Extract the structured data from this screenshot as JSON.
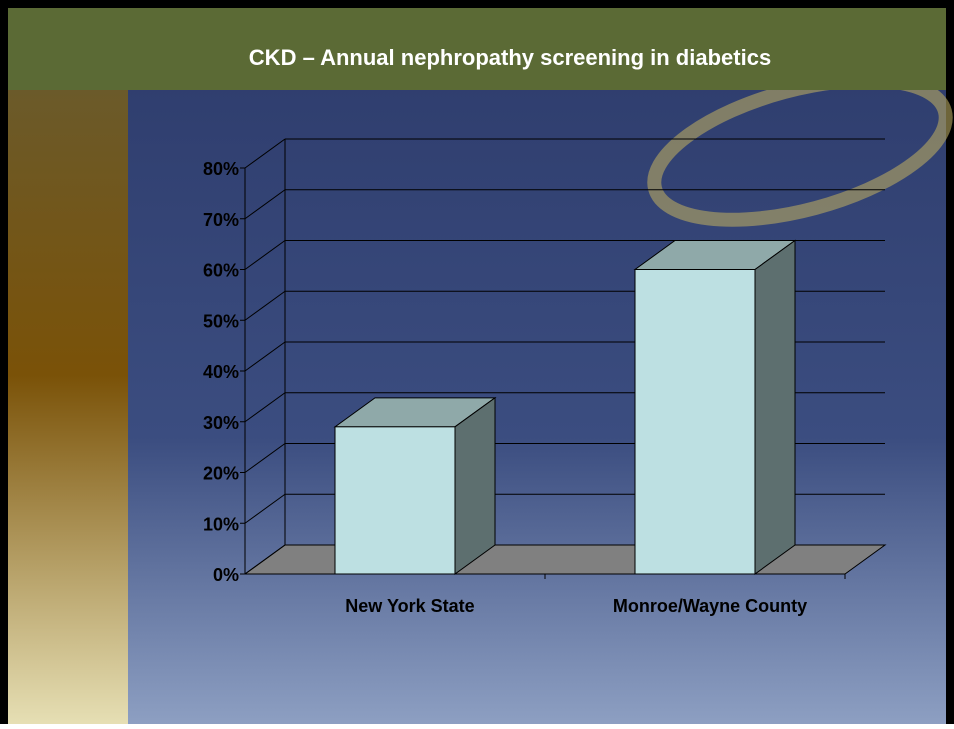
{
  "chart_data": {
    "type": "bar3d",
    "title": "CKD – Annual nephropathy screening in diabetics",
    "categories": [
      "New York State",
      "Monroe/Wayne County"
    ],
    "values": [
      29,
      60
    ],
    "color": "#bde0e2",
    "ylim": [
      0,
      80
    ],
    "yticks": [
      {
        "value": 0,
        "label": "0%"
      },
      {
        "value": 10,
        "label": "10%"
      },
      {
        "value": 20,
        "label": "20%"
      },
      {
        "value": 30,
        "label": "30%"
      },
      {
        "value": 40,
        "label": "40%"
      },
      {
        "value": 50,
        "label": "50%"
      },
      {
        "value": 60,
        "label": "60%"
      },
      {
        "value": 70,
        "label": "70%"
      },
      {
        "value": 80,
        "label": "80%"
      }
    ],
    "grid": true
  }
}
